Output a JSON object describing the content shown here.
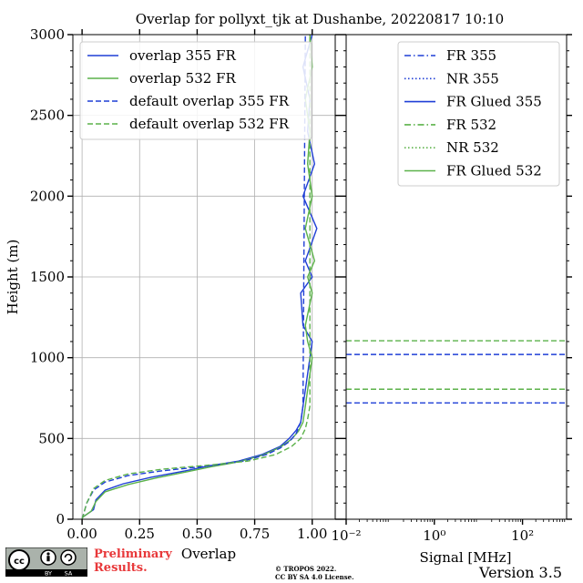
{
  "chart_data": {
    "type": "line",
    "title": "Overlap for pollyxt_tjk at Dushanbe, 20220817 10:10",
    "panels": [
      {
        "id": "overlap",
        "xlabel": "Overlap",
        "ylabel": "Height (m)",
        "xlim": [
          -0.04,
          1.1
        ],
        "ylim": [
          0,
          3000
        ],
        "xticks": [
          "0.00",
          "0.25",
          "0.50",
          "0.75",
          "1.00"
        ],
        "yticks": [
          "0",
          "500",
          "1000",
          "1500",
          "2000",
          "2500",
          "3000"
        ],
        "grid": true,
        "legend_position": "top-left",
        "series": [
          {
            "name": "overlap 355 FR",
            "color": "#1f3fd6",
            "style": "solid",
            "x": [
              0.0,
              0.05,
              0.06,
              0.1,
              0.18,
              0.3,
              0.45,
              0.55,
              0.68,
              0.78,
              0.86,
              0.9,
              0.93,
              0.95,
              0.96,
              0.97,
              0.98,
              0.99,
              1.0,
              0.96,
              0.95,
              1.0,
              0.97,
              1.02,
              0.96,
              1.01,
              0.98,
              0.99,
              0.96,
              1.0
            ],
            "y": [
              10,
              60,
              120,
              180,
              220,
              260,
              300,
              330,
              360,
              400,
              450,
              500,
              550,
              600,
              700,
              800,
              900,
              1000,
              1100,
              1200,
              1400,
              1500,
              1600,
              1800,
              2000,
              2200,
              2400,
              2600,
              2800,
              3000
            ]
          },
          {
            "name": "overlap 532 FR",
            "color": "#5cb24a",
            "style": "solid",
            "x": [
              0.0,
              0.04,
              0.06,
              0.1,
              0.2,
              0.32,
              0.46,
              0.56,
              0.68,
              0.78,
              0.86,
              0.91,
              0.94,
              0.96,
              0.97,
              0.98,
              0.99,
              1.0,
              0.98,
              0.97,
              1.0,
              0.98,
              1.01,
              0.97,
              1.0,
              0.98,
              0.99,
              0.97,
              1.0,
              0.99
            ],
            "y": [
              10,
              50,
              110,
              170,
              215,
              255,
              295,
              325,
              355,
              395,
              445,
              495,
              545,
              600,
              700,
              800,
              900,
              1000,
              1100,
              1200,
              1400,
              1500,
              1600,
              1800,
              2000,
              2200,
              2400,
              2600,
              2800,
              3000
            ]
          },
          {
            "name": "default overlap 355 FR",
            "color": "#1f3fd6",
            "style": "dashed",
            "x": [
              0.0,
              0.02,
              0.05,
              0.1,
              0.2,
              0.35,
              0.55,
              0.7,
              0.8,
              0.86,
              0.9,
              0.93,
              0.95,
              0.96,
              0.97
            ],
            "y": [
              0,
              100,
              180,
              230,
              270,
              300,
              330,
              360,
              400,
              440,
              480,
              530,
              600,
              700,
              3000
            ]
          },
          {
            "name": "default overlap 532 FR",
            "color": "#5cb24a",
            "style": "dashed",
            "x": [
              0.0,
              0.02,
              0.05,
              0.1,
              0.2,
              0.35,
              0.55,
              0.72,
              0.84,
              0.91,
              0.95,
              0.97,
              0.98,
              0.99,
              0.99
            ],
            "y": [
              0,
              100,
              190,
              240,
              280,
              310,
              335,
              360,
              400,
              450,
              500,
              560,
              620,
              700,
              3000
            ]
          }
        ]
      },
      {
        "id": "signal",
        "xlabel": "Signal [MHz]",
        "xscale": "log",
        "xlim": [
          0.01,
          1000
        ],
        "ylim": [
          0,
          3000
        ],
        "xticks": [
          0.01,
          1,
          100
        ],
        "xtick_labels": [
          "10⁻²",
          "10⁰",
          "10²"
        ],
        "grid": false,
        "legend_position": "top-right",
        "legend": [
          {
            "name": "FR 355",
            "color": "#1f3fd6",
            "style": "dashdot"
          },
          {
            "name": "NR 355",
            "color": "#1f3fd6",
            "style": "dotted"
          },
          {
            "name": "FR Glued 355",
            "color": "#1f3fd6",
            "style": "solid"
          },
          {
            "name": "FR 532",
            "color": "#5cb24a",
            "style": "dashdot"
          },
          {
            "name": "NR 532",
            "color": "#5cb24a",
            "style": "dotted"
          },
          {
            "name": "FR Glued 532",
            "color": "#5cb24a",
            "style": "solid"
          }
        ],
        "hlines": [
          {
            "y": 720,
            "color": "#1f3fd6",
            "style": "dashed"
          },
          {
            "y": 1020,
            "color": "#1f3fd6",
            "style": "dashed"
          },
          {
            "y": 805,
            "color": "#5cb24a",
            "style": "dashed"
          },
          {
            "y": 1105,
            "color": "#5cb24a",
            "style": "dashed"
          }
        ]
      }
    ]
  },
  "footer": {
    "cc_by": "BY",
    "cc_sa": "SA",
    "preliminary_line1": "Preliminary",
    "preliminary_line2": "Results.",
    "copyright_line1": "© TROPOS 2022.",
    "copyright_line2": "CC BY SA 4.0 License.",
    "version": "Version 3.5"
  }
}
